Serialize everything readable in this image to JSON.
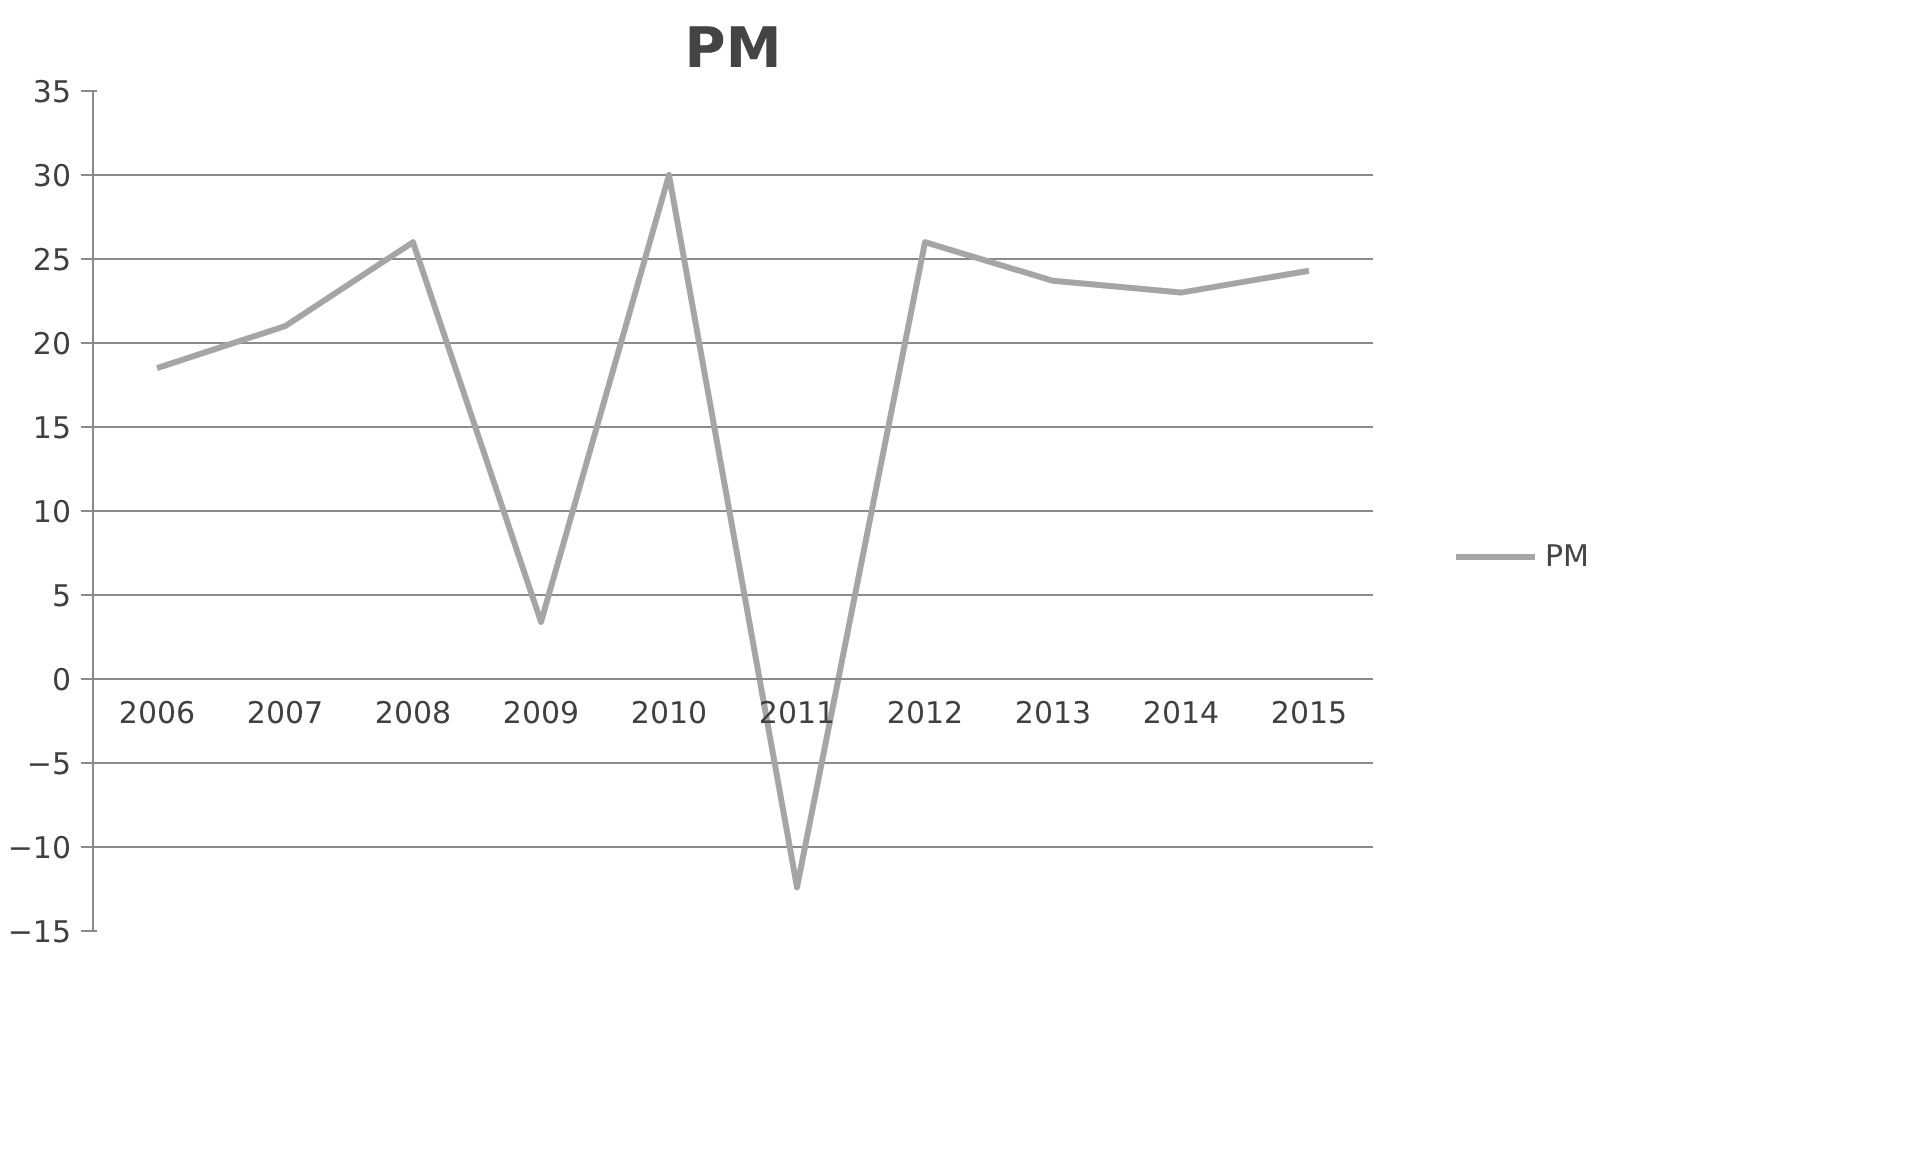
{
  "chart_data": {
    "type": "line",
    "title": "PM",
    "categories": [
      "2006",
      "2007",
      "2008",
      "2009",
      "2010",
      "2011",
      "2012",
      "2013",
      "2014",
      "2015"
    ],
    "series": [
      {
        "name": "PM",
        "color": "#a5a5a5",
        "values": [
          18.5,
          21,
          26,
          3.4,
          30,
          -12.4,
          26,
          23.7,
          23,
          24.3
        ]
      }
    ],
    "ylim": [
      -15,
      35
    ],
    "yticks": [
      -15,
      -10,
      -5,
      0,
      5,
      10,
      15,
      20,
      25,
      30,
      35
    ],
    "grid": "y",
    "legend": "right",
    "marker": "none",
    "line_style": "solid"
  }
}
